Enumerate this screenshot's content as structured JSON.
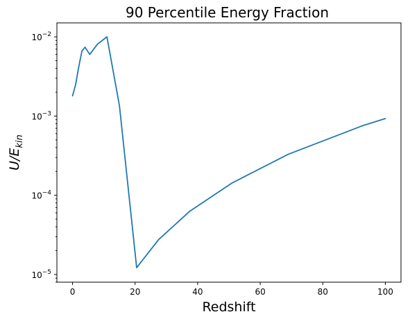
{
  "chart_data": {
    "type": "line",
    "title": "90 Percentile Energy Fraction",
    "xlabel": "Redshift",
    "ylabel": "U/E",
    "ylabel_subscript": "kin",
    "xlim": [
      -5,
      105
    ],
    "ylim": [
      8e-06,
      0.015
    ],
    "yscale": "log",
    "grid": false,
    "x_ticks": [
      0,
      20,
      40,
      60,
      80,
      100
    ],
    "x_tick_labels": [
      "0",
      "20",
      "40",
      "60",
      "80",
      "100"
    ],
    "y_ticks": [
      1e-05,
      0.0001,
      0.001,
      0.01
    ],
    "y_tick_labels": [
      {
        "base": "10",
        "exp": "−5"
      },
      {
        "base": "10",
        "exp": "−4"
      },
      {
        "base": "10",
        "exp": "−3"
      },
      {
        "base": "10",
        "exp": "−2"
      }
    ],
    "series": [
      {
        "color": "#1f77b4",
        "x": [
          0,
          1,
          2,
          3,
          4,
          5.5,
          8,
          11,
          15,
          20.5,
          27.5,
          37.5,
          51,
          69,
          92.5,
          100
        ],
        "y": [
          0.0018,
          0.0025,
          0.0042,
          0.0066,
          0.0074,
          0.006,
          0.0081,
          0.01,
          0.00135,
          1.22e-05,
          2.75e-05,
          6.3e-05,
          0.000143,
          0.00033,
          0.00075,
          0.00093
        ]
      }
    ]
  }
}
